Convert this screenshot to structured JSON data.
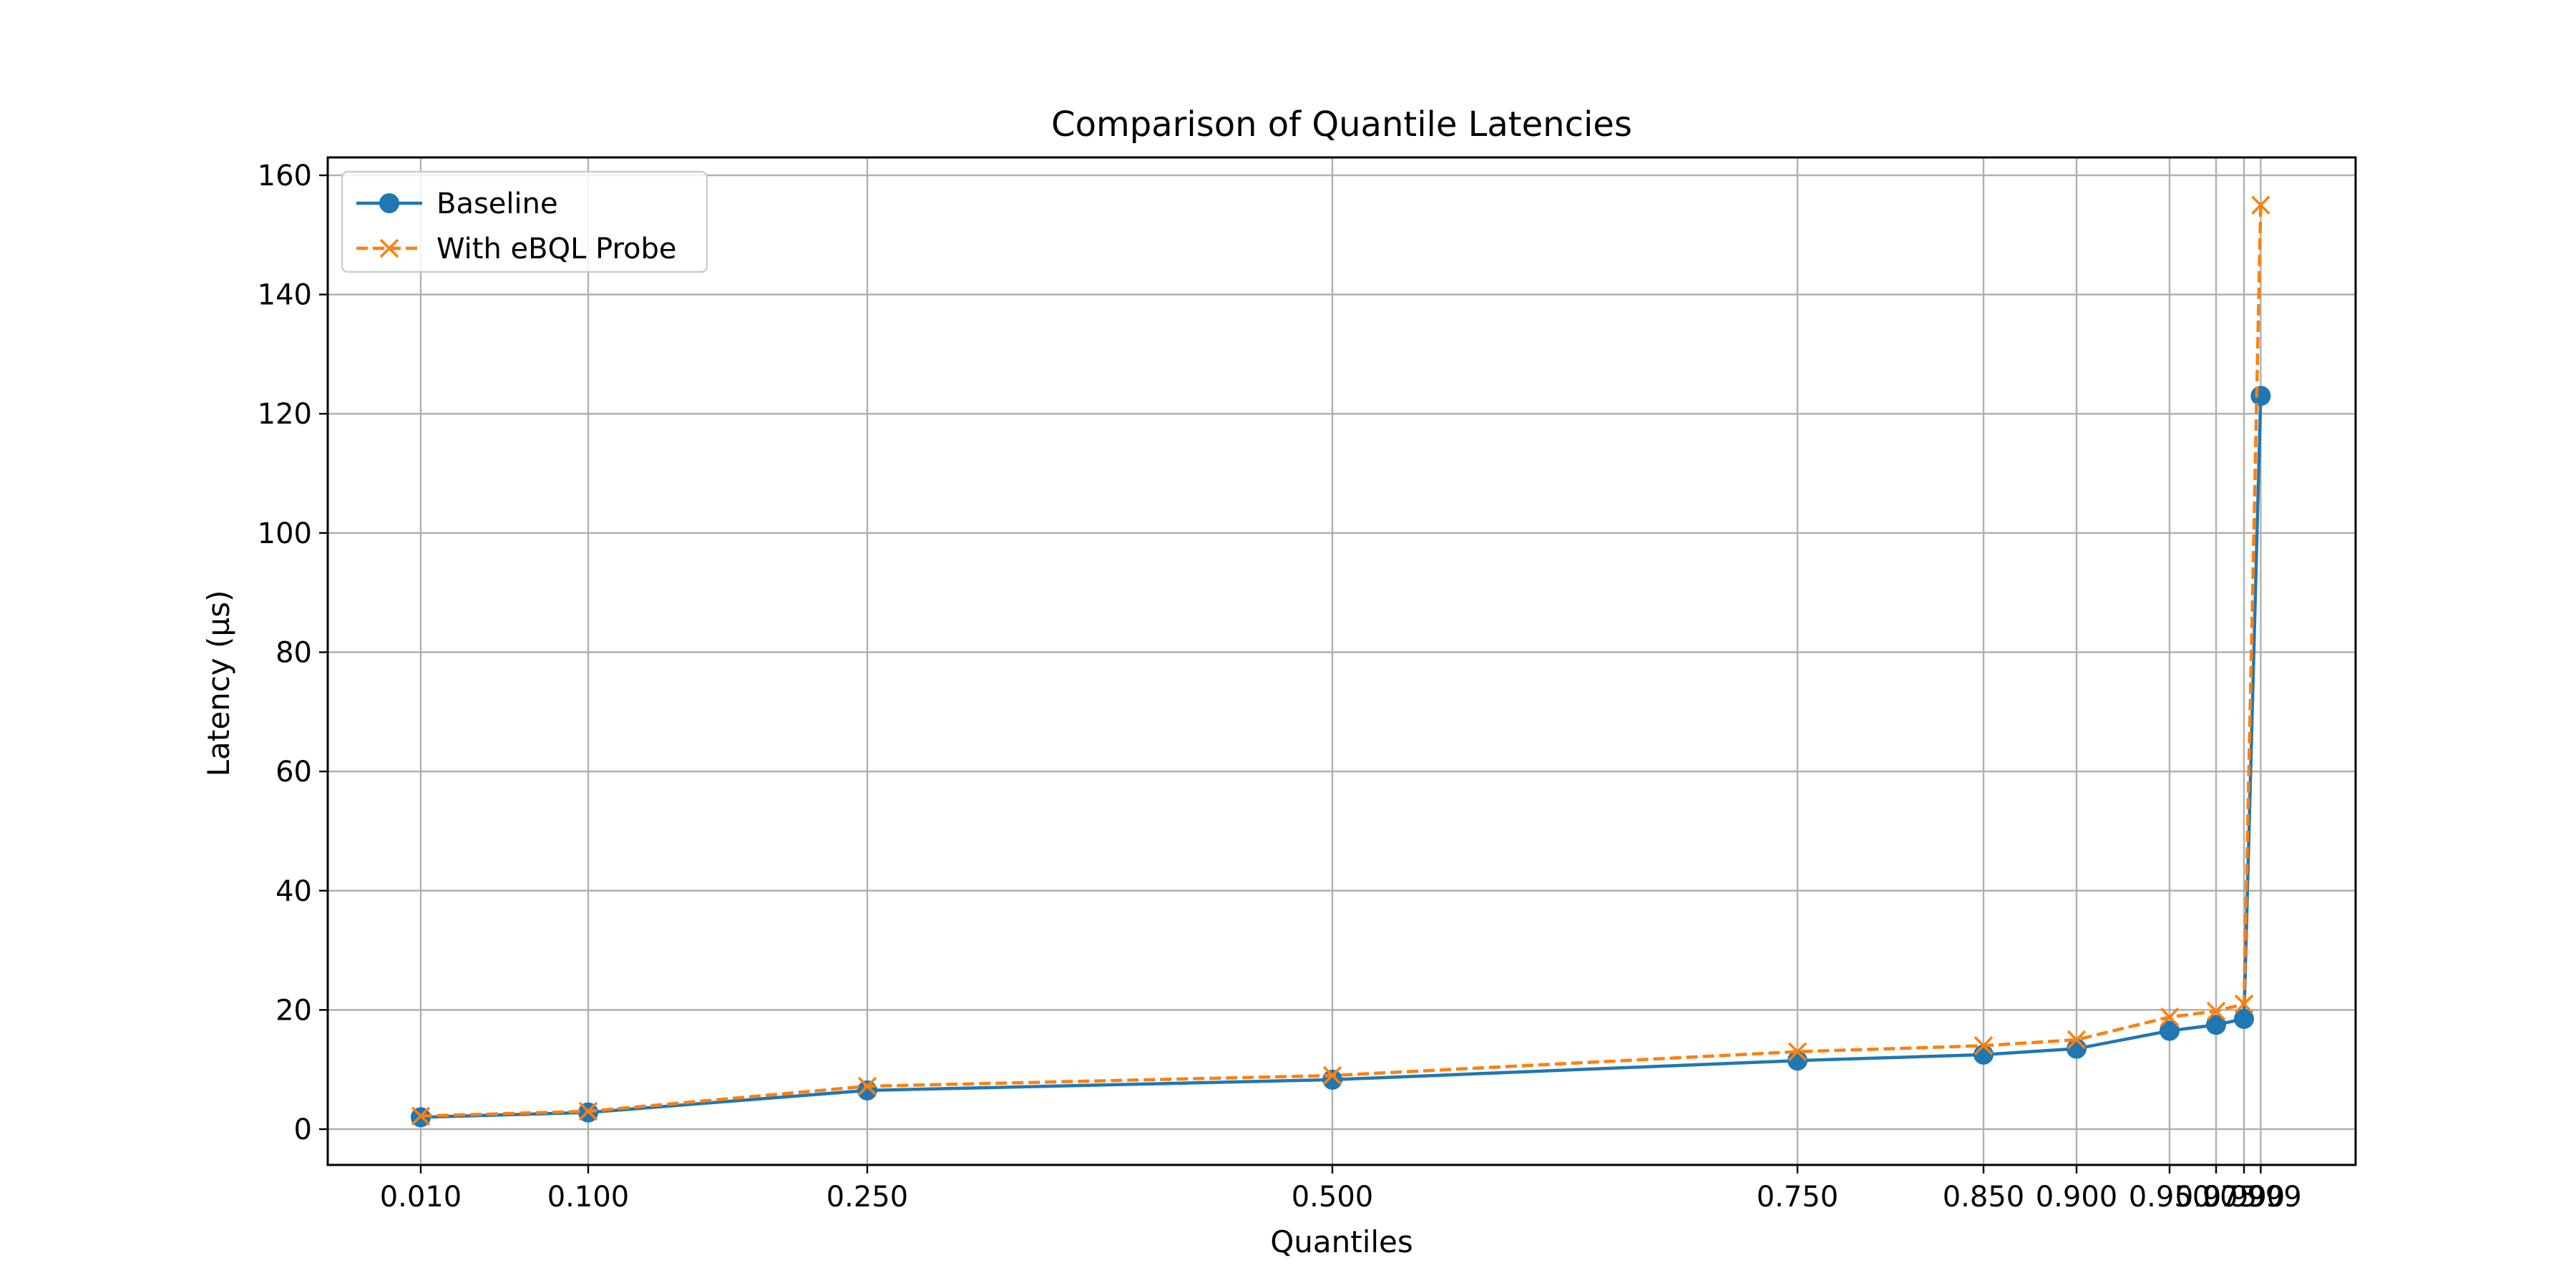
{
  "chart_data": {
    "type": "line",
    "title": "Comparison of Quantile Latencies",
    "xlabel": "Quantiles",
    "ylabel": "Latency (µs)",
    "x": [
      0.01,
      0.1,
      0.25,
      0.5,
      0.75,
      0.85,
      0.9,
      0.95,
      0.975,
      0.99,
      0.999
    ],
    "x_tick_labels": [
      "0.010",
      "0.100",
      "0.250",
      "0.500",
      "0.750",
      "0.850",
      "0.900",
      "0.950",
      "0.975",
      "0.990",
      "0.999"
    ],
    "xlim": [
      -0.04,
      1.05
    ],
    "yticks": [
      0,
      20,
      40,
      60,
      80,
      100,
      120,
      140,
      160
    ],
    "ylim": [
      -6,
      163
    ],
    "grid": true,
    "legend": "top-left",
    "series": [
      {
        "name": "Baseline",
        "values": [
          2.0,
          2.8,
          6.5,
          8.3,
          11.5,
          12.5,
          13.5,
          16.5,
          17.5,
          18.5,
          123.0
        ],
        "color": "#1f77b4",
        "marker": "circle",
        "line": "solid"
      },
      {
        "name": "With eBQL Probe",
        "values": [
          2.2,
          3.0,
          7.2,
          9.0,
          13.0,
          14.0,
          15.0,
          18.8,
          19.8,
          21.0,
          155.0
        ],
        "color": "#ff7f0e",
        "marker": "x",
        "line": "dashed"
      }
    ]
  }
}
